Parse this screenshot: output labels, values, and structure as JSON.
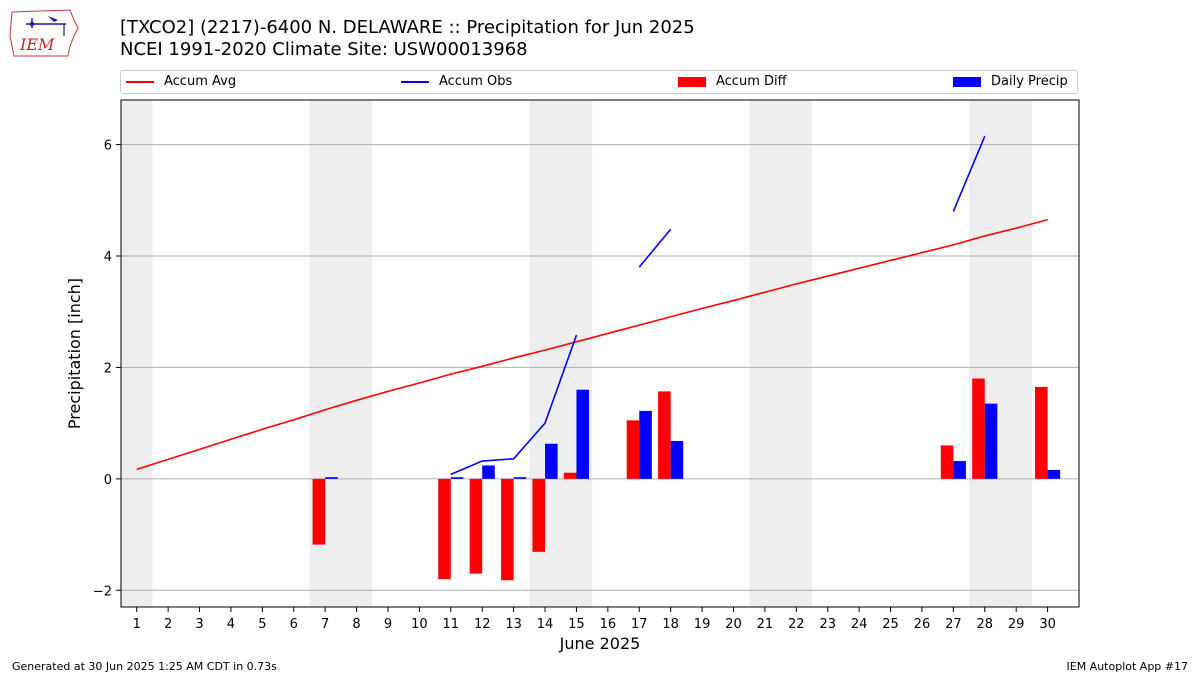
{
  "header": {
    "title_line1": "[TXCO2] (2217)-6400 N. DELAWARE :: Precipitation for Jun 2025",
    "title_line2": "NCEI 1991-2020 Climate Site: USW00013968"
  },
  "logo": {
    "text": "IEM",
    "icon": "iowa-state-outline-icon"
  },
  "legend": {
    "accum_avg": "Accum Avg",
    "accum_obs": "Accum Obs",
    "accum_diff": "Accum Diff",
    "daily_precip": "Daily Precip"
  },
  "footer": {
    "left": "Generated at 30 Jun 2025 1:25 AM CDT in 0.73s",
    "right": "IEM Autoplot App #17"
  },
  "colors": {
    "avg": "#ff0000",
    "obs": "#0000ff",
    "diff": "#ff0000",
    "daily": "#0000ff",
    "weekend": "#eeeeee",
    "grid": "#b0b0b0"
  },
  "chart_data": {
    "type": "bar",
    "xlabel": "June 2025",
    "ylabel": "Precipitation [inch]",
    "xlim": [
      0.5,
      31.0
    ],
    "ylim": [
      -2.3,
      6.8
    ],
    "xticks": [
      1,
      2,
      3,
      4,
      5,
      6,
      7,
      8,
      9,
      10,
      11,
      12,
      13,
      14,
      15,
      16,
      17,
      18,
      19,
      20,
      21,
      22,
      23,
      24,
      25,
      26,
      27,
      28,
      29,
      30
    ],
    "yticks": [
      -2,
      0,
      2,
      4,
      6
    ],
    "grid": "y",
    "legend_position": "top",
    "weekend_spans": [
      [
        0.5,
        1.5
      ],
      [
        6.5,
        8.5
      ],
      [
        13.5,
        15.5
      ],
      [
        20.5,
        22.5
      ],
      [
        27.5,
        29.5
      ]
    ],
    "accum_avg": [
      [
        1,
        0.17
      ],
      [
        2,
        0.35
      ],
      [
        3,
        0.53
      ],
      [
        4,
        0.71
      ],
      [
        5,
        0.89
      ],
      [
        6,
        1.06
      ],
      [
        7,
        1.24
      ],
      [
        8,
        1.41
      ],
      [
        9,
        1.57
      ],
      [
        10,
        1.72
      ],
      [
        11,
        1.88
      ],
      [
        12,
        2.02
      ],
      [
        13,
        2.17
      ],
      [
        14,
        2.31
      ],
      [
        15,
        2.46
      ],
      [
        16,
        2.61
      ],
      [
        17,
        2.76
      ],
      [
        18,
        2.91
      ],
      [
        19,
        3.06
      ],
      [
        20,
        3.2
      ],
      [
        21,
        3.35
      ],
      [
        22,
        3.5
      ],
      [
        23,
        3.64
      ],
      [
        24,
        3.78
      ],
      [
        25,
        3.92
      ],
      [
        26,
        4.06
      ],
      [
        27,
        4.2
      ],
      [
        28,
        4.36
      ],
      [
        29,
        4.5
      ],
      [
        30,
        4.65
      ]
    ],
    "accum_obs_segments": [
      [
        [
          11,
          0.08
        ],
        [
          12,
          0.32
        ],
        [
          13,
          0.36
        ],
        [
          14,
          1.0
        ],
        [
          15,
          2.58
        ]
      ],
      [
        [
          17,
          3.8
        ],
        [
          18,
          4.48
        ]
      ],
      [
        [
          27,
          4.8
        ],
        [
          28,
          6.15
        ]
      ]
    ],
    "accum_diff": [
      [
        7,
        -1.18
      ],
      [
        11,
        -1.8
      ],
      [
        12,
        -1.7
      ],
      [
        13,
        -1.82
      ],
      [
        14,
        -1.31
      ],
      [
        15,
        0.11
      ],
      [
        17,
        1.05
      ],
      [
        18,
        1.57
      ],
      [
        27,
        0.6
      ],
      [
        28,
        1.8
      ],
      [
        30,
        1.65
      ]
    ],
    "daily_precip": [
      [
        7,
        0.03
      ],
      [
        11,
        0.03
      ],
      [
        12,
        0.24
      ],
      [
        13,
        0.03
      ],
      [
        14,
        0.63
      ],
      [
        15,
        1.6
      ],
      [
        17,
        1.22
      ],
      [
        18,
        0.68
      ],
      [
        27,
        0.32
      ],
      [
        28,
        1.35
      ],
      [
        30,
        0.16
      ]
    ]
  }
}
